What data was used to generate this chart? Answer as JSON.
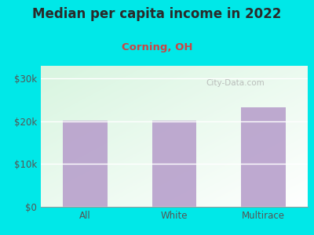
{
  "title": "Median per capita income in 2022",
  "subtitle": "Corning, OH",
  "categories": [
    "All",
    "White",
    "Multirace"
  ],
  "values": [
    20100,
    20100,
    23200
  ],
  "bar_color": "#b8a0cc",
  "background_color": "#00e8e8",
  "title_color": "#2a2a2a",
  "subtitle_color": "#cc4444",
  "tick_color": "#555555",
  "yticks": [
    0,
    10000,
    20000,
    30000
  ],
  "ytick_labels": [
    "$0",
    "$10k",
    "$20k",
    "$30k"
  ],
  "ylim": [
    0,
    33000
  ],
  "title_fontsize": 12,
  "subtitle_fontsize": 9.5,
  "tick_fontsize": 8.5,
  "watermark": "City-Data.com"
}
